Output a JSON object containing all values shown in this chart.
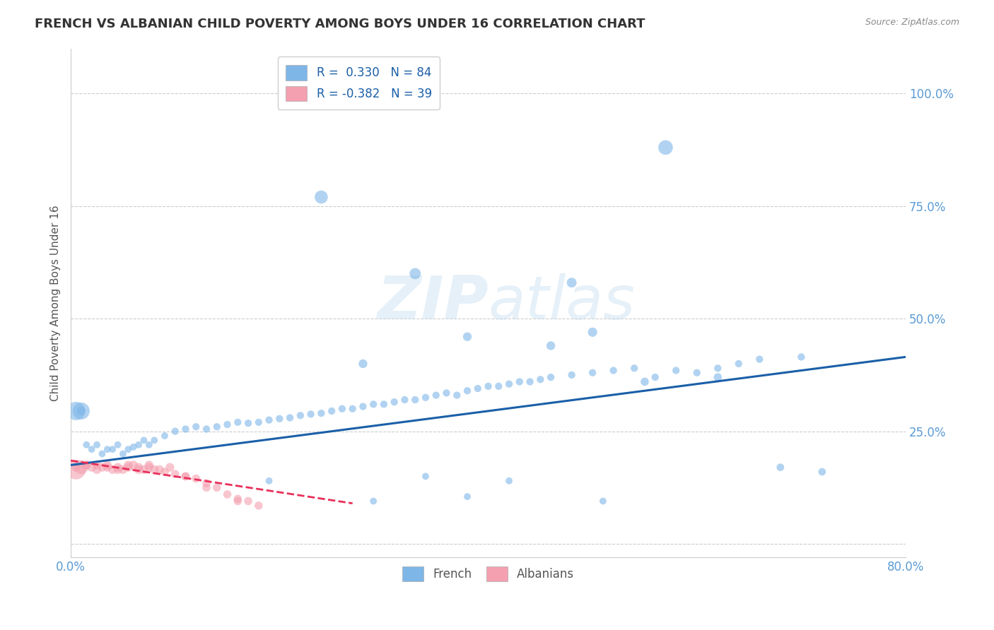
{
  "title": "FRENCH VS ALBANIAN CHILD POVERTY AMONG BOYS UNDER 16 CORRELATION CHART",
  "source": "Source: ZipAtlas.com",
  "ylabel": "Child Poverty Among Boys Under 16",
  "xlim": [
    0.0,
    0.8
  ],
  "ylim": [
    -0.03,
    1.1
  ],
  "yticks_right": [
    0.0,
    0.25,
    0.5,
    0.75,
    1.0
  ],
  "ytick_right_labels": [
    "",
    "25.0%",
    "50.0%",
    "75.0%",
    "100.0%"
  ],
  "french_R": 0.33,
  "french_N": 84,
  "albanian_R": -0.382,
  "albanian_N": 39,
  "french_color": "#7eb6e8",
  "albanian_color": "#f4a0b0",
  "french_line_color": "#1a5fa8",
  "albanian_line_color": "#e8305a",
  "background_color": "#ffffff",
  "grid_color": "#cccccc",
  "title_color": "#333333",
  "axis_label_color": "#5a9bd5",
  "french_line_x": [
    0.0,
    0.8
  ],
  "french_line_y": [
    0.175,
    0.415
  ],
  "albanian_line_x": [
    0.0,
    0.27
  ],
  "albanian_line_y": [
    0.185,
    0.09
  ],
  "french_pts_x": [
    0.005,
    0.01,
    0.015,
    0.02,
    0.025,
    0.03,
    0.035,
    0.04,
    0.045,
    0.05,
    0.055,
    0.06,
    0.065,
    0.07,
    0.075,
    0.08,
    0.09,
    0.1,
    0.11,
    0.12,
    0.13,
    0.14,
    0.15,
    0.16,
    0.17,
    0.18,
    0.19,
    0.2,
    0.21,
    0.22,
    0.23,
    0.24,
    0.25,
    0.26,
    0.27,
    0.28,
    0.29,
    0.3,
    0.31,
    0.32,
    0.33,
    0.34,
    0.35,
    0.36,
    0.37,
    0.38,
    0.39,
    0.4,
    0.41,
    0.42,
    0.43,
    0.44,
    0.45,
    0.46,
    0.48,
    0.5,
    0.52,
    0.54,
    0.56,
    0.58,
    0.6,
    0.62,
    0.64,
    0.66,
    0.7,
    0.01,
    0.24,
    0.33,
    0.48,
    0.57,
    0.5,
    0.28,
    0.38,
    0.46,
    0.55,
    0.62,
    0.68,
    0.72,
    0.34,
    0.42,
    0.51,
    0.38,
    0.29,
    0.19
  ],
  "french_pts_y": [
    0.295,
    0.295,
    0.22,
    0.21,
    0.22,
    0.2,
    0.21,
    0.21,
    0.22,
    0.2,
    0.21,
    0.215,
    0.22,
    0.23,
    0.22,
    0.23,
    0.24,
    0.25,
    0.255,
    0.26,
    0.255,
    0.26,
    0.265,
    0.27,
    0.268,
    0.27,
    0.275,
    0.278,
    0.28,
    0.285,
    0.288,
    0.29,
    0.295,
    0.3,
    0.3,
    0.305,
    0.31,
    0.31,
    0.315,
    0.32,
    0.32,
    0.325,
    0.33,
    0.335,
    0.33,
    0.34,
    0.345,
    0.35,
    0.35,
    0.355,
    0.36,
    0.36,
    0.365,
    0.37,
    0.375,
    0.38,
    0.385,
    0.39,
    0.37,
    0.385,
    0.38,
    0.39,
    0.4,
    0.41,
    0.415,
    0.295,
    0.77,
    0.6,
    0.58,
    0.88,
    0.47,
    0.4,
    0.46,
    0.44,
    0.36,
    0.37,
    0.17,
    0.16,
    0.15,
    0.14,
    0.095,
    0.105,
    0.095,
    0.14
  ],
  "french_pts_s": [
    350,
    80,
    50,
    50,
    50,
    50,
    50,
    50,
    50,
    50,
    50,
    50,
    50,
    50,
    50,
    50,
    50,
    55,
    55,
    55,
    55,
    55,
    55,
    55,
    55,
    55,
    55,
    55,
    55,
    55,
    55,
    55,
    55,
    55,
    55,
    55,
    55,
    55,
    55,
    55,
    55,
    55,
    55,
    55,
    55,
    55,
    55,
    55,
    55,
    55,
    55,
    55,
    55,
    55,
    55,
    55,
    55,
    55,
    55,
    55,
    55,
    55,
    55,
    55,
    55,
    300,
    180,
    130,
    100,
    220,
    90,
    80,
    80,
    80,
    70,
    70,
    60,
    60,
    50,
    50,
    50,
    50,
    50,
    50
  ],
  "albanian_pts_x": [
    0.005,
    0.01,
    0.015,
    0.02,
    0.025,
    0.03,
    0.035,
    0.04,
    0.045,
    0.05,
    0.055,
    0.06,
    0.065,
    0.07,
    0.075,
    0.08,
    0.09,
    0.1,
    0.11,
    0.12,
    0.13,
    0.14,
    0.15,
    0.16,
    0.17,
    0.18,
    0.005,
    0.015,
    0.025,
    0.035,
    0.045,
    0.055,
    0.065,
    0.075,
    0.085,
    0.095,
    0.11,
    0.13,
    0.16
  ],
  "albanian_pts_y": [
    0.165,
    0.17,
    0.175,
    0.17,
    0.165,
    0.17,
    0.175,
    0.165,
    0.17,
    0.165,
    0.17,
    0.175,
    0.17,
    0.165,
    0.17,
    0.165,
    0.16,
    0.155,
    0.15,
    0.145,
    0.135,
    0.125,
    0.11,
    0.1,
    0.095,
    0.085,
    0.17,
    0.175,
    0.175,
    0.17,
    0.165,
    0.175,
    0.165,
    0.175,
    0.165,
    0.17,
    0.15,
    0.125,
    0.095
  ],
  "albanian_pts_s": [
    400,
    200,
    80,
    80,
    80,
    80,
    80,
    80,
    80,
    80,
    80,
    80,
    80,
    80,
    80,
    80,
    70,
    70,
    70,
    70,
    70,
    70,
    70,
    70,
    70,
    70,
    80,
    80,
    80,
    80,
    80,
    80,
    80,
    80,
    80,
    80,
    70,
    70,
    70
  ]
}
